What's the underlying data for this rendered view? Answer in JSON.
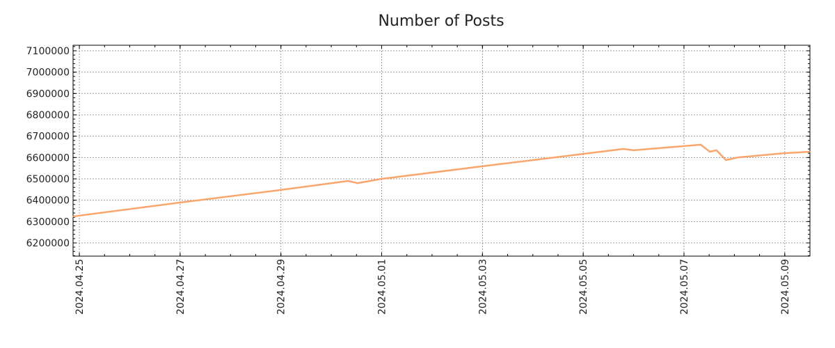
{
  "chart_data": {
    "type": "line",
    "title": "Number of Posts",
    "xlabel": "",
    "ylabel": "",
    "grid": true,
    "xlim": [
      "2024-04-24T21:00",
      "2024-05-09T12:00"
    ],
    "ylim": [
      6138000,
      7126000
    ],
    "x_ticks": [
      "2024.04.25",
      "2024.04.27",
      "2024.04.29",
      "2024.05.01",
      "2024.05.03",
      "2024.05.05",
      "2024.05.07",
      "2024.05.09"
    ],
    "y_ticks": [
      "6200000",
      "6300000",
      "6400000",
      "6500000",
      "6600000",
      "6700000",
      "6800000",
      "6900000",
      "7000000",
      "7100000"
    ],
    "color": "#f9a66c",
    "series": [
      {
        "name": "Number of Posts",
        "x": [
          "2024-04-24T21:00",
          "2024-04-27T00:00",
          "2024-04-29T00:00",
          "2024-04-30T08:00",
          "2024-04-30T12:30",
          "2024-05-01T00:00",
          "2024-05-03T00:00",
          "2024-05-05T00:00",
          "2024-05-05T19:00",
          "2024-05-06T00:00",
          "2024-05-06T23:00",
          "2024-05-07T08:00",
          "2024-05-07T12:15",
          "2024-05-07T15:30",
          "2024-05-07T20:00",
          "2024-05-08T01:30",
          "2024-05-08T23:15",
          "2024-05-09T12:00"
        ],
        "values": [
          6324000,
          6389000,
          6448000,
          6490000,
          6480000,
          6500000,
          6559000,
          6617000,
          6640000,
          6634000,
          6653000,
          6660000,
          6627000,
          6634000,
          6588000,
          6600000,
          6620000,
          6627000
        ]
      }
    ]
  }
}
